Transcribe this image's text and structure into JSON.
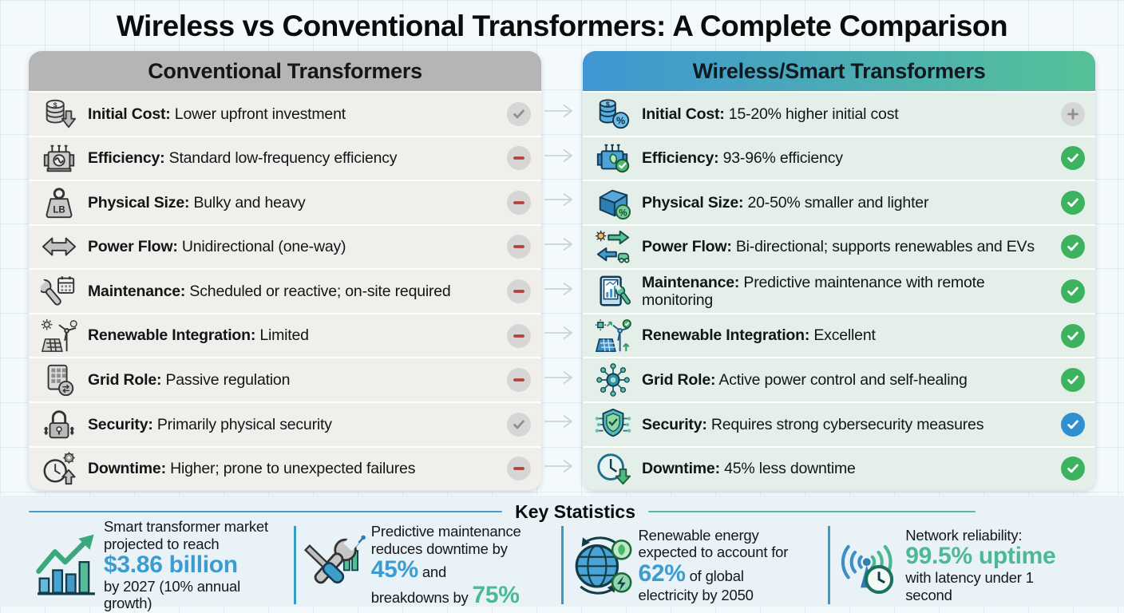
{
  "title": "Wireless vs Conventional Transformers: A Complete Comparison",
  "colors": {
    "accent_blue": "#3b9cd0",
    "accent_teal": "#4db896",
    "negative_red": "#b5413c",
    "positive_green": "#3cb35f",
    "info_blue": "#2f8fd0",
    "neutral_gray": "#d6d6d6",
    "conventional_header_gray": "#b5b5b5",
    "smart_header_gradient": [
      "#3f96d2",
      "#56c198"
    ]
  },
  "left_column": {
    "header": "Conventional Transformers",
    "rows": [
      {
        "icon": "coins-down",
        "label": "Initial Cost:",
        "text": "Lower upfront investment",
        "status": "check-gray"
      },
      {
        "icon": "transformer",
        "label": "Efficiency:",
        "text": "Standard low-frequency efficiency",
        "status": "minus-red"
      },
      {
        "icon": "weight-lb",
        "label": "Physical Size:",
        "text": "Bulky and heavy",
        "status": "minus-red"
      },
      {
        "icon": "arrow-both",
        "label": "Power Flow:",
        "text": "Unidirectional (one-way)",
        "status": "minus-red"
      },
      {
        "icon": "wrench-calendar",
        "label": "Maintenance:",
        "text": "Scheduled or reactive; on-site required",
        "status": "minus-red"
      },
      {
        "icon": "solar-wind",
        "label": "Renewable Integration:",
        "text": "Limited",
        "status": "minus-red"
      },
      {
        "icon": "keypad-arrows",
        "label": "Grid Role:",
        "text": "Passive regulation",
        "status": "minus-red"
      },
      {
        "icon": "padlock",
        "label": "Security:",
        "text": "Primarily physical security",
        "status": "check-gray"
      },
      {
        "icon": "clock-gear-up",
        "label": "Downtime:",
        "text": "Higher; prone to unexpected failures",
        "status": "minus-red"
      }
    ]
  },
  "right_column": {
    "header": "Wireless/Smart Transformers",
    "rows": [
      {
        "icon": "coins-percent",
        "label": "Initial Cost:",
        "text": "15-20% higher initial cost",
        "status": "plus-gray"
      },
      {
        "icon": "transformer-leaf",
        "label": "Efficiency:",
        "text": "93-96% efficiency",
        "status": "check-green"
      },
      {
        "icon": "box-percent",
        "label": "Physical Size:",
        "text": "20-50% smaller and lighter",
        "status": "check-green"
      },
      {
        "icon": "arrows-ev",
        "label": "Power Flow:",
        "text": "Bi-directional; supports renewables and EVs",
        "status": "check-green"
      },
      {
        "icon": "tablet-chart",
        "label": "Maintenance:",
        "text": "Predictive maintenance with remote monitoring",
        "status": "check-green"
      },
      {
        "icon": "solar-wind-check",
        "label": "Renewable Integration:",
        "text": "Excellent",
        "status": "check-green"
      },
      {
        "icon": "network-hub",
        "label": "Grid Role:",
        "text": "Active power control and self-healing",
        "status": "check-green"
      },
      {
        "icon": "shield-circuit",
        "label": "Security:",
        "text": "Requires strong cybersecurity measures",
        "status": "check-blue"
      },
      {
        "icon": "clock-down",
        "label": "Downtime:",
        "text": "45% less downtime",
        "status": "check-green"
      }
    ]
  },
  "key_statistics": {
    "title": "Key Statistics",
    "stats": [
      {
        "name": "market-growth",
        "icon": "growth-chart",
        "lines": [
          [
            {
              "text": "Smart transformer market",
              "style": "normal"
            }
          ],
          [
            {
              "text": "projected to reach",
              "style": "normal"
            }
          ],
          [
            {
              "text": "$3.86 billion",
              "style": "accent-blue"
            }
          ],
          [
            {
              "text": "by 2027 (10% annual growth)",
              "style": "normal"
            }
          ]
        ]
      },
      {
        "name": "maintenance-savings",
        "icon": "wrench-tools",
        "lines": [
          [
            {
              "text": "Predictive maintenance",
              "style": "normal"
            }
          ],
          [
            {
              "text": "reduces downtime by",
              "style": "normal"
            }
          ],
          [
            {
              "text": "45%",
              "style": "accent-blue"
            },
            {
              "text": " and",
              "style": "normal"
            }
          ],
          [
            {
              "text": "breakdowns by ",
              "style": "normal"
            },
            {
              "text": "75%",
              "style": "accent-teal"
            }
          ]
        ]
      },
      {
        "name": "renewable-share",
        "icon": "globe-renewable",
        "lines": [
          [
            {
              "text": "Renewable energy",
              "style": "normal"
            }
          ],
          [
            {
              "text": "expected to account for",
              "style": "normal"
            }
          ],
          [
            {
              "text": "62%",
              "style": "accent-blue"
            },
            {
              "text": " of global",
              "style": "normal"
            }
          ],
          [
            {
              "text": "electricity by 2050",
              "style": "normal"
            }
          ]
        ]
      },
      {
        "name": "network-reliability",
        "icon": "signal-clock",
        "lines": [
          [
            {
              "text": "Network reliability:",
              "style": "normal"
            }
          ],
          [
            {
              "text": "99.5% uptime",
              "style": "accent-teal"
            }
          ],
          [
            {
              "text": "with latency under 1",
              "style": "normal"
            }
          ],
          [
            {
              "text": "second",
              "style": "normal"
            }
          ]
        ]
      }
    ]
  }
}
